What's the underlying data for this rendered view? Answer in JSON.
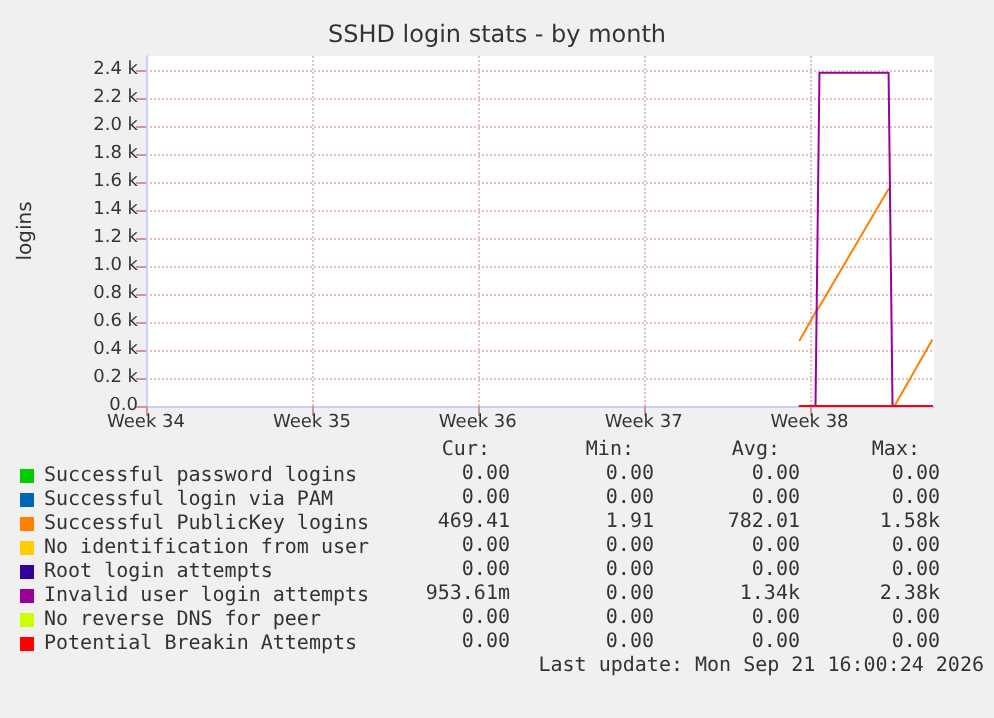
{
  "chart_data": {
    "type": "line",
    "title": "SSHD login stats - by month",
    "ylabel": "logins",
    "x": [
      "2026-09-17T02:00",
      "2026-09-17T18:00",
      "2026-09-17T22:00",
      "2026-09-20T20:00",
      "2026-09-21T00:00",
      "2026-09-21T02:00",
      "2026-09-22T16:00"
    ],
    "xlim": [
      "2026-08-20T12:00",
      "2026-09-22T18:00"
    ],
    "xticks": [
      {
        "value": "2026-08-20T12:00",
        "label": "Week 34"
      },
      {
        "value": "2026-08-27T12:00",
        "label": "Week 35"
      },
      {
        "value": "2026-09-03T12:00",
        "label": "Week 36"
      },
      {
        "value": "2026-09-10T12:00",
        "label": "Week 37"
      },
      {
        "value": "2026-09-17T12:00",
        "label": "Week 38"
      }
    ],
    "ylim": [
      0,
      2500
    ],
    "yticks": [
      {
        "value": 0,
        "label": "0.0"
      },
      {
        "value": 200,
        "label": "0.2 k"
      },
      {
        "value": 400,
        "label": "0.4 k"
      },
      {
        "value": 600,
        "label": "0.6 k"
      },
      {
        "value": 800,
        "label": "0.8 k"
      },
      {
        "value": 1000,
        "label": "1.0 k"
      },
      {
        "value": 1200,
        "label": "1.2 k"
      },
      {
        "value": 1400,
        "label": "1.4 k"
      },
      {
        "value": 1600,
        "label": "1.6 k"
      },
      {
        "value": 1800,
        "label": "1.8 k"
      },
      {
        "value": 2000,
        "label": "2.0 k"
      },
      {
        "value": 2200,
        "label": "2.2 k"
      },
      {
        "value": 2400,
        "label": "2.4 k"
      }
    ],
    "series": [
      {
        "name": "Successful password logins",
        "color": "#00cc00",
        "values": [
          null,
          null,
          null,
          null,
          null,
          null,
          null
        ]
      },
      {
        "name": "Successful login via PAM",
        "color": "#0066b3",
        "values": [
          null,
          null,
          null,
          null,
          null,
          null,
          null
        ]
      },
      {
        "name": "Successful PublicKey logins",
        "color": "#ff8000",
        "values": [
          470,
          670,
          710,
          1550,
          null,
          0,
          470
        ]
      },
      {
        "name": "No identification from user",
        "color": "#ffcc00",
        "values": [
          null,
          null,
          null,
          null,
          null,
          null,
          null
        ]
      },
      {
        "name": "Root login attempts",
        "color": "#330099",
        "values": [
          null,
          null,
          null,
          null,
          null,
          null,
          null
        ]
      },
      {
        "name": "Invalid user login attempts",
        "color": "#990099",
        "values": [
          0,
          0,
          2380,
          2380,
          0,
          0,
          0
        ]
      },
      {
        "name": "No reverse DNS for peer",
        "color": "#ccff00",
        "values": [
          null,
          null,
          null,
          null,
          null,
          null,
          null
        ]
      },
      {
        "name": "Potential Breakin Attempts",
        "color": "#ff0000",
        "values": [
          0,
          0,
          0,
          0,
          0,
          0,
          0
        ]
      }
    ],
    "annotations": [
      "Cur:",
      "Min:",
      "Avg:",
      "Max:",
      "0.00",
      "0.00",
      "0.00",
      "0.00",
      "0.00",
      "0.00",
      "0.00",
      "0.00",
      "469.41",
      "1.91",
      "782.01",
      "1.58k",
      "0.00",
      "0.00",
      "0.00",
      "0.00",
      "0.00",
      "0.00",
      "0.00",
      "0.00",
      "953.61m",
      "0.00",
      "1.34k",
      "2.38k",
      "0.00",
      "0.00",
      "0.00",
      "0.00",
      "0.00",
      "0.00",
      "0.00",
      "0.00",
      "Last update: Mon Sep 21 16:00:24 2026"
    ],
    "grid": true,
    "legend": "bottom",
    "marker": "none",
    "line_style": "solid"
  }
}
